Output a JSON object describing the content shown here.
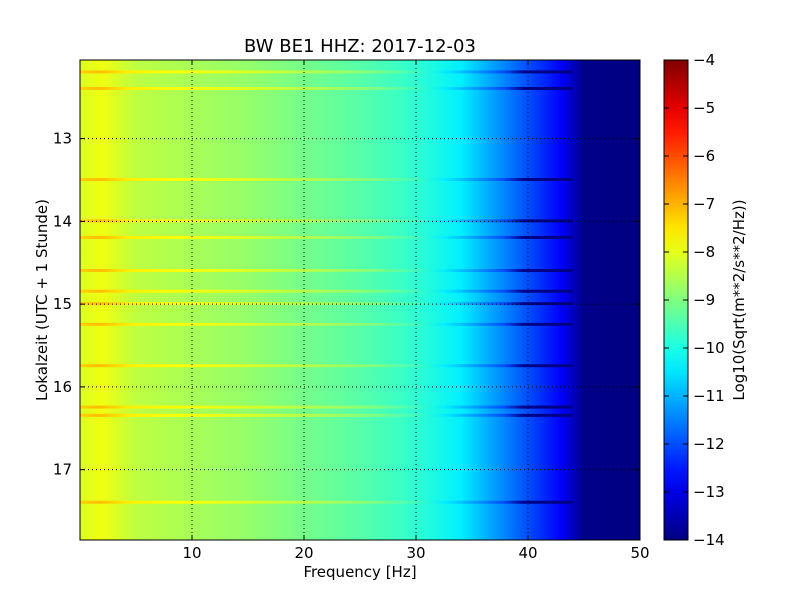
{
  "chart_data": {
    "type": "heatmap",
    "title": "BW BE1 HHZ: 2017-12-03",
    "xlabel": "Frequency [Hz]",
    "ylabel": "Lokalzeit (UTC + 1 Stunde)",
    "xlim": [
      0,
      50
    ],
    "ylim": [
      12.05,
      17.85
    ],
    "x_ticks": [
      10,
      20,
      30,
      40,
      50
    ],
    "y_ticks": [
      13,
      14,
      15,
      16,
      17
    ],
    "grid": true,
    "colorbar": {
      "label": "Log10(Sqrt(m**2/s**2/Hz))",
      "range": [
        -14,
        -4
      ],
      "ticks": [
        -4,
        -5,
        -6,
        -7,
        -8,
        -9,
        -10,
        -11,
        -12,
        -13,
        -14
      ],
      "colormap": "jet"
    },
    "spectral_profile": [
      {
        "f": 0,
        "v": -8.1
      },
      {
        "f": 2,
        "v": -7.9
      },
      {
        "f": 5,
        "v": -8.4
      },
      {
        "f": 10,
        "v": -8.6
      },
      {
        "f": 15,
        "v": -8.8
      },
      {
        "f": 20,
        "v": -9.1
      },
      {
        "f": 25,
        "v": -9.4
      },
      {
        "f": 30,
        "v": -9.8
      },
      {
        "f": 34,
        "v": -10.4
      },
      {
        "f": 37,
        "v": -11.2
      },
      {
        "f": 40,
        "v": -12.0
      },
      {
        "f": 43,
        "v": -12.8
      },
      {
        "f": 45,
        "v": -13.9
      },
      {
        "f": 50,
        "v": -14.0
      }
    ],
    "bright_bands_time": [
      12.2,
      12.4,
      13.5,
      14.0,
      14.2,
      14.6,
      14.85,
      15.0,
      15.25,
      15.75,
      16.25,
      16.35,
      17.4
    ]
  },
  "colors": {
    "grid": "#000000",
    "frame": "#000000"
  }
}
